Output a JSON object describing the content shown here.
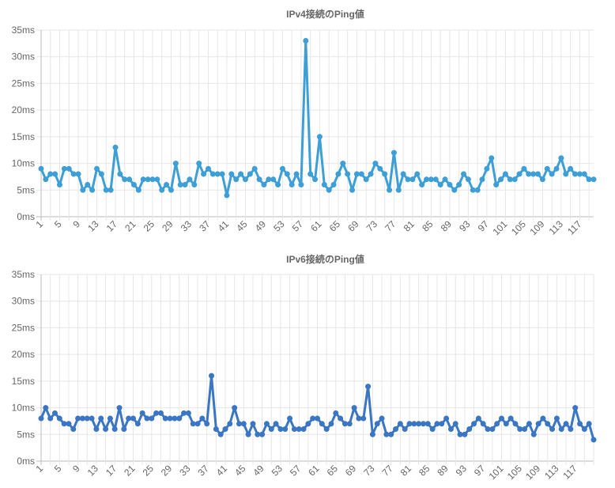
{
  "chart_data": [
    {
      "type": "line",
      "title": "IPv4接続のPing値",
      "color": "#3d9fd6",
      "ylim": [
        0,
        35
      ],
      "yticks": [
        "0ms",
        "5ms",
        "10ms",
        "15ms",
        "20ms",
        "25ms",
        "30ms",
        "35ms"
      ],
      "grid": true,
      "xlabels": [
        "1",
        "5",
        "9",
        "13",
        "17",
        "21",
        "25",
        "29",
        "33",
        "37",
        "41",
        "45",
        "49",
        "53",
        "57",
        "61",
        "65",
        "69",
        "73",
        "77",
        "81",
        "85",
        "89",
        "93",
        "97",
        "101",
        "105",
        "109",
        "113",
        "117"
      ],
      "x_start": 1,
      "x_step": 2,
      "values": [
        9,
        7,
        8,
        8,
        6,
        9,
        9,
        8,
        8,
        5,
        6,
        5,
        9,
        8,
        5,
        5,
        13,
        8,
        7,
        7,
        6,
        5,
        7,
        7,
        7,
        7,
        5,
        6,
        5,
        10,
        6,
        6,
        7,
        6,
        10,
        8,
        9,
        8,
        8,
        8,
        4,
        8,
        7,
        8,
        7,
        8,
        9,
        7,
        6,
        7,
        7,
        6,
        9,
        8,
        6,
        8,
        6,
        33,
        8,
        7,
        15,
        6,
        5,
        6,
        8,
        10,
        8,
        5,
        8,
        8,
        7,
        8,
        10,
        9,
        8,
        5,
        12,
        5,
        8,
        7,
        7,
        8,
        6,
        7,
        7,
        7,
        6,
        7,
        6,
        5,
        6,
        8,
        7,
        5,
        5,
        7,
        9,
        11,
        6,
        7,
        8,
        7,
        7,
        8,
        9,
        8,
        8,
        8,
        7,
        9,
        8,
        9,
        11,
        8,
        9,
        8,
        8,
        8,
        7,
        7
      ]
    },
    {
      "type": "line",
      "title": "IPv6接続のPing値",
      "color": "#3a76c3",
      "ylim": [
        0,
        35
      ],
      "yticks": [
        "0ms",
        "5ms",
        "10ms",
        "15ms",
        "20ms",
        "25ms",
        "30ms",
        "35ms"
      ],
      "grid": true,
      "xlabels": [
        "1",
        "5",
        "9",
        "13",
        "17",
        "21",
        "25",
        "29",
        "33",
        "37",
        "41",
        "45",
        "49",
        "53",
        "57",
        "61",
        "65",
        "69",
        "73",
        "77",
        "81",
        "85",
        "89",
        "93",
        "97",
        "101",
        "105",
        "109",
        "113",
        "117"
      ],
      "x_start": 1,
      "x_step": 2,
      "values": [
        8,
        10,
        8,
        9,
        8,
        7,
        7,
        6,
        8,
        8,
        8,
        8,
        6,
        8,
        6,
        8,
        6,
        10,
        6,
        8,
        8,
        7,
        9,
        8,
        8,
        9,
        9,
        8,
        8,
        8,
        8,
        9,
        9,
        7,
        7,
        8,
        7,
        16,
        6,
        5,
        6,
        7,
        10,
        7,
        7,
        5,
        7,
        5,
        5,
        7,
        6,
        7,
        6,
        6,
        8,
        6,
        6,
        6,
        7,
        8,
        8,
        7,
        6,
        7,
        9,
        8,
        7,
        7,
        10,
        8,
        8,
        14,
        5,
        7,
        8,
        5,
        5,
        6,
        7,
        6,
        7,
        7,
        7,
        7,
        7,
        6,
        7,
        7,
        8,
        6,
        7,
        5,
        5,
        6,
        7,
        8,
        7,
        6,
        6,
        7,
        8,
        7,
        8,
        7,
        6,
        6,
        7,
        5,
        7,
        8,
        7,
        6,
        8,
        6,
        7,
        6,
        10,
        7,
        6,
        7,
        4
      ]
    }
  ]
}
